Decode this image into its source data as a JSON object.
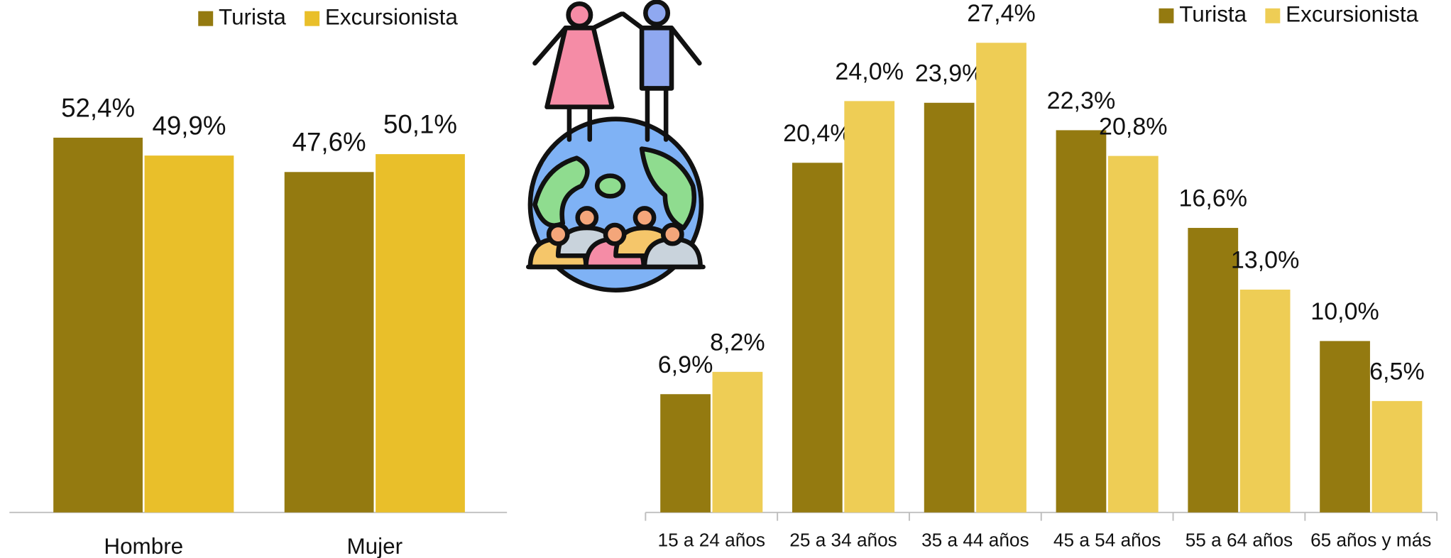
{
  "chart_data": [
    {
      "type": "bar",
      "categories": [
        "Hombre",
        "Mujer"
      ],
      "series": [
        {
          "name": "Turista",
          "color": "#947a10",
          "values": [
            52.4,
            47.6
          ],
          "value_labels": [
            "52,4%",
            "47,6%"
          ]
        },
        {
          "name": "Excursionista",
          "color": "#e9bf2a",
          "values": [
            49.9,
            50.1
          ],
          "value_labels": [
            "49,9%",
            "50,1%"
          ]
        }
      ],
      "legend": "top"
    },
    {
      "type": "bar",
      "categories": [
        "15 a 24 años",
        "25 a 34 años",
        "35 a 44 años",
        "45 a 54 años",
        "55 a 64 años",
        "65 años y más"
      ],
      "series": [
        {
          "name": "Turista",
          "color": "#947a10",
          "values": [
            6.9,
            20.4,
            23.9,
            22.3,
            16.6,
            10.0
          ],
          "value_labels": [
            "6,9%",
            "20,4%",
            "23,9%",
            "22,3%",
            "16,6%",
            "10,0%"
          ]
        },
        {
          "name": "Excursionista",
          "color": "#eecd55",
          "values": [
            8.2,
            24.0,
            27.4,
            20.8,
            13.0,
            6.5
          ],
          "value_labels": [
            "8,2%",
            "24,0%",
            "27,4%",
            "20,8%",
            "13,0%",
            "6,5%"
          ]
        }
      ],
      "legend": "top"
    }
  ]
}
